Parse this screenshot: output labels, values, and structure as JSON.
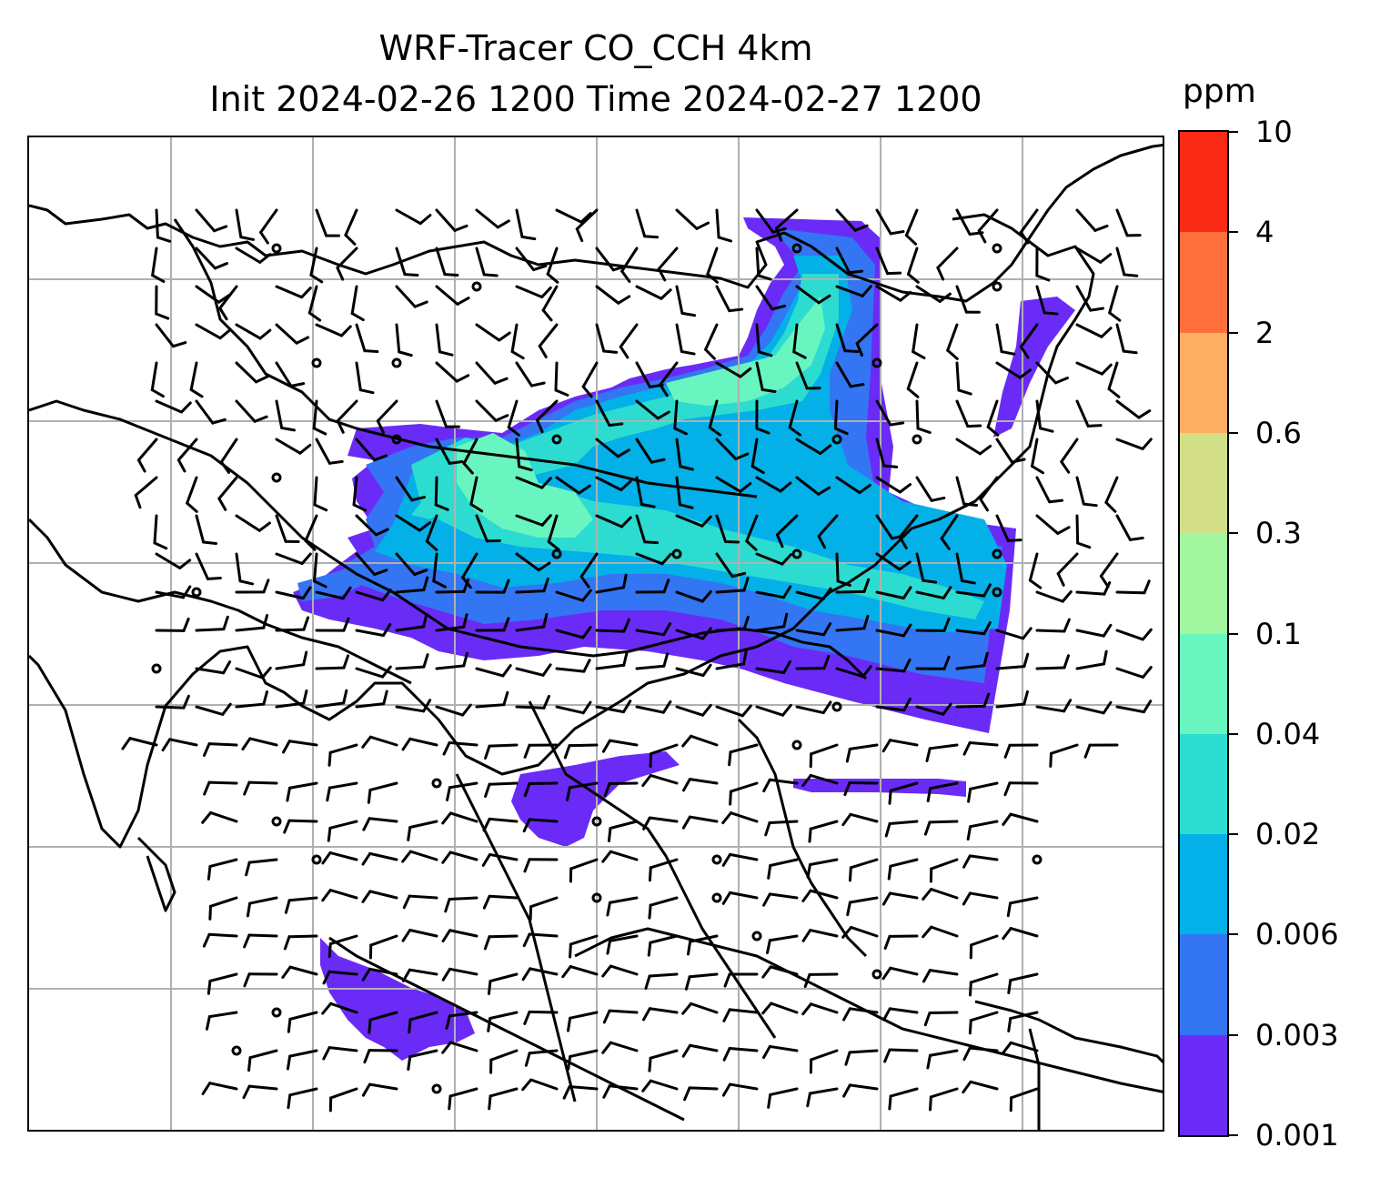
{
  "title": {
    "line1": "WRF-Tracer CO_CCH 4km",
    "line2": "Init 2024-02-26 1200 Time 2024-02-27 1200"
  },
  "colorbar": {
    "unit": "ppm",
    "ticks": [
      "0.001",
      "0.003",
      "0.006",
      "0.02",
      "0.04",
      "0.1",
      "0.3",
      "0.6",
      "2",
      "4",
      "10"
    ],
    "colors": [
      "#6a2bf6",
      "#3375f2",
      "#04b0e8",
      "#2ddcd0",
      "#68f5c0",
      "#a1f79e",
      "#d2df86",
      "#fdae62",
      "#fe6f3b",
      "#fa2a17"
    ]
  },
  "map": {
    "gridline_color": "#b0b0b0",
    "coastline_color": "#000000",
    "wind_barbs": "black"
  },
  "chart_data": {
    "type": "heatmap",
    "variable": "CO_CCH",
    "units": "ppm",
    "levels": [
      0.001,
      0.003,
      0.006,
      0.02,
      0.04,
      0.1,
      0.3,
      0.6,
      2,
      4,
      10
    ],
    "valid_time": "2024-02-27 1200",
    "init_time": "2024-02-26 1200",
    "overlays": [
      "coastlines",
      "country borders",
      "wind barbs",
      "lat/lon gridlines"
    ]
  }
}
